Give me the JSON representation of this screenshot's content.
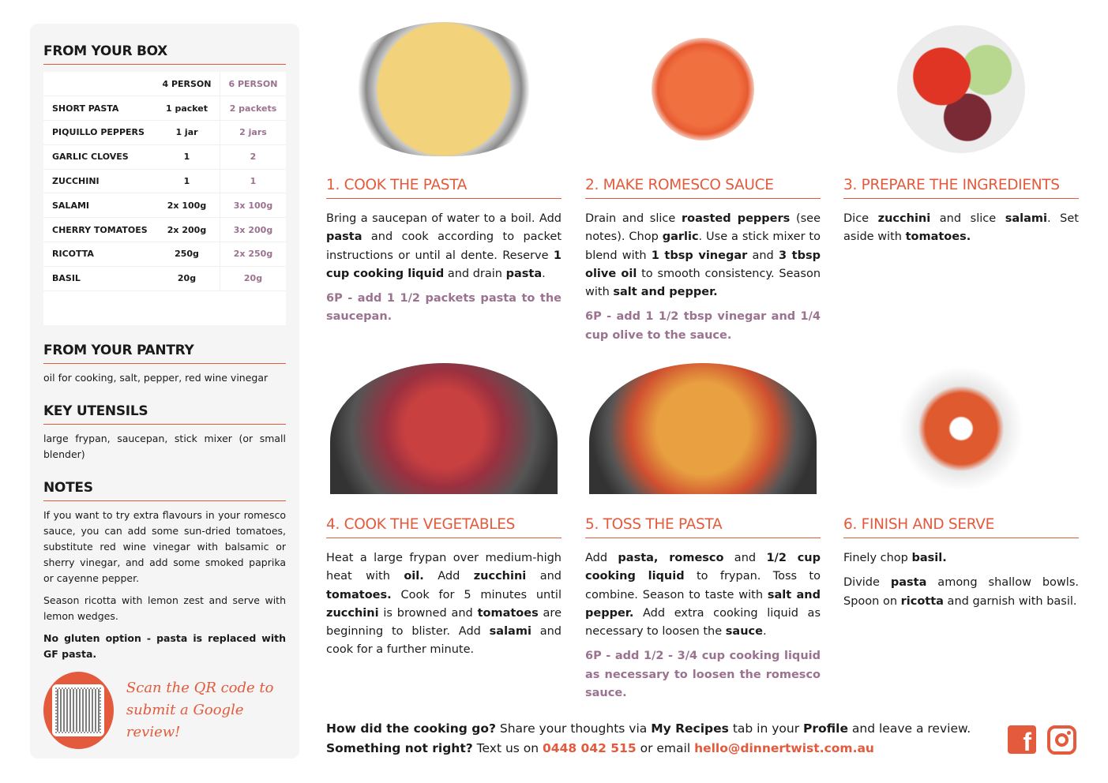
{
  "accent": "#e35a3c",
  "secondary": "#9b7290",
  "box": {
    "title": "FROM YOUR BOX",
    "col4": "4 PERSON",
    "col6": "6 PERSON",
    "rows": [
      [
        "SHORT PASTA",
        "1 packet",
        "2 packets"
      ],
      [
        "PIQUILLO PEPPERS",
        "1 jar",
        "2 jars"
      ],
      [
        "GARLIC CLOVES",
        "1",
        "2"
      ],
      [
        "ZUCCHINI",
        "1",
        "1"
      ],
      [
        "SALAMI",
        "2x 100g",
        "3x 100g"
      ],
      [
        "CHERRY TOMATOES",
        "2x 200g",
        "3x 200g"
      ],
      [
        "RICOTTA",
        "250g",
        "2x 250g"
      ],
      [
        "BASIL",
        "20g",
        "20g"
      ]
    ]
  },
  "pantry": {
    "title": "FROM YOUR PANTRY",
    "text": "oil for cooking, salt, pepper, red wine vinegar"
  },
  "utensils": {
    "title": "KEY UTENSILS",
    "text": "large frypan, saucepan, stick mixer (or small blender)"
  },
  "notes": {
    "title": "NOTES",
    "p1": "If you want to try extra flavours in your romesco sauce, you can add some sun-dried tomatoes, substitute red wine vinegar with balsamic or sherry vinegar, and add some smoked paprika or cayenne pepper.",
    "p2": "Season ricotta with lemon zest and serve with lemon wedges.",
    "p3": "No gluten option - pasta is replaced with GF pasta."
  },
  "qr": {
    "line1": "Scan the QR code to",
    "line2": "submit a Google review!"
  },
  "steps": [
    {
      "title": "1. COOK THE PASTA",
      "image": "pasta-in-colander",
      "paras": [
        [
          [
            "Bring a saucepan of water to a boil. Add ",
            0
          ],
          [
            "pasta",
            1
          ],
          [
            " and cook according to packet instructions or until al dente. Reserve ",
            0
          ],
          [
            "1 cup cooking liquid",
            1
          ],
          [
            " and drain ",
            0
          ],
          [
            "pasta",
            1
          ],
          [
            ".",
            0
          ]
        ]
      ],
      "six": "6P - add 1 1/2 packets pasta to the saucepan."
    },
    {
      "title": "2. MAKE ROMESCO SAUCE",
      "image": "romesco-sauce",
      "paras": [
        [
          [
            "Drain and slice ",
            0
          ],
          [
            "roasted peppers",
            1
          ],
          [
            " (see notes). Chop ",
            0
          ],
          [
            "garlic",
            1
          ],
          [
            ". Use a stick mixer to blend with ",
            0
          ],
          [
            "1 tbsp vinegar",
            1
          ],
          [
            " and ",
            0
          ],
          [
            "3 tbsp olive oil",
            1
          ],
          [
            " to smooth consistency. Season with ",
            0
          ],
          [
            "salt and pepper.",
            1
          ]
        ]
      ],
      "six": "6P - add 1 1/2 tbsp vinegar and 1/4 cup olive to the sauce."
    },
    {
      "title": "3. PREPARE THE INGREDIENTS",
      "image": "chopped-ingredients",
      "paras": [
        [
          [
            "Dice ",
            0
          ],
          [
            "zucchini",
            1
          ],
          [
            " and slice ",
            0
          ],
          [
            "salami",
            1
          ],
          [
            ". Set aside with ",
            0
          ],
          [
            "tomatoes.",
            1
          ]
        ]
      ],
      "six": ""
    },
    {
      "title": "4. COOK THE VEGETABLES",
      "image": "vegetables-in-frypan",
      "paras": [
        [
          [
            "Heat a large frypan over medium-high heat with ",
            0
          ],
          [
            "oil.",
            1
          ],
          [
            " Add ",
            0
          ],
          [
            "zucchini",
            1
          ],
          [
            " and ",
            0
          ],
          [
            "tomatoes.",
            1
          ],
          [
            " Cook for 5 minutes until ",
            0
          ],
          [
            "zucchini",
            1
          ],
          [
            " is browned and ",
            0
          ],
          [
            "tomatoes",
            1
          ],
          [
            " are beginning to blister. Add ",
            0
          ],
          [
            "salami",
            1
          ],
          [
            " and cook for a further minute.",
            0
          ]
        ]
      ],
      "six": ""
    },
    {
      "title": "5. TOSS THE PASTA",
      "image": "pasta-in-frypan",
      "paras": [
        [
          [
            "Add ",
            0
          ],
          [
            "pasta, romesco",
            1
          ],
          [
            " and ",
            0
          ],
          [
            "1/2 cup cooking liquid",
            1
          ],
          [
            " to frypan. Toss to combine. Season to taste with ",
            0
          ],
          [
            "salt and pepper.",
            1
          ],
          [
            " Add extra cooking liquid as necessary to loosen the ",
            0
          ],
          [
            "sauce",
            1
          ],
          [
            ".",
            0
          ]
        ]
      ],
      "six": "6P - add 1/2 - 3/4 cup cooking liquid as necessary to loosen the romesco sauce."
    },
    {
      "title": "6. FINISH AND SERVE",
      "image": "served-bowl",
      "paras": [
        [
          [
            "Finely chop ",
            0
          ],
          [
            "basil.",
            1
          ]
        ],
        [
          [
            "Divide ",
            0
          ],
          [
            "pasta",
            1
          ],
          [
            " among shallow bowls. Spoon on ",
            0
          ],
          [
            "ricotta",
            1
          ],
          [
            " and garnish with basil.",
            0
          ]
        ]
      ],
      "six": ""
    }
  ],
  "footer": {
    "q1": "How did the cooking go?",
    "t1": " Share your thoughts via ",
    "b1": "My Recipes",
    "t2": " tab in your ",
    "b2": "Profile",
    "t3": " and leave a review.",
    "q2": "Something not right?",
    "t4": " Text us on ",
    "phone": "0448 042 515",
    "t5": " or email ",
    "email": "hello@dinnertwist.com.au"
  },
  "social": [
    "facebook-icon",
    "instagram-icon"
  ]
}
